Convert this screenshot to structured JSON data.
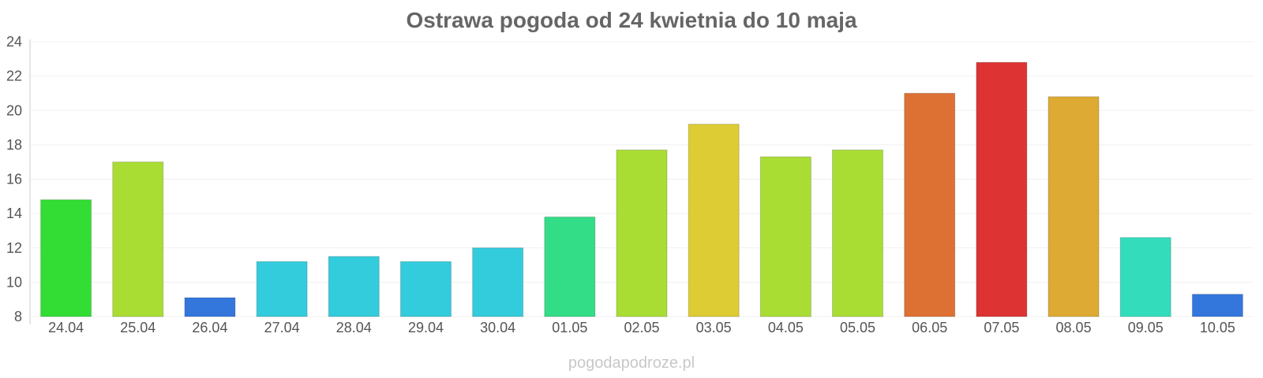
{
  "title": "Ostrawa pogoda od 24 kwietnia do 10 maja",
  "watermark": "pogodapodroze.pl",
  "chart_data": {
    "type": "bar",
    "title": "Ostrawa pogoda od 24 kwietnia do 10 maja",
    "xlabel": "",
    "ylabel": "",
    "ylim": [
      8,
      24
    ],
    "yticks": [
      8,
      10,
      12,
      14,
      16,
      18,
      20,
      22,
      24
    ],
    "grid": true,
    "categories": [
      "24.04",
      "25.04",
      "26.04",
      "27.04",
      "28.04",
      "29.04",
      "30.04",
      "01.05",
      "02.05",
      "03.05",
      "04.05",
      "05.05",
      "06.05",
      "07.05",
      "08.05",
      "09.05",
      "10.05"
    ],
    "values": [
      14.8,
      17.0,
      9.1,
      11.2,
      11.5,
      11.2,
      12.0,
      13.8,
      17.7,
      19.2,
      17.3,
      17.7,
      21.0,
      22.8,
      20.8,
      12.6,
      9.3
    ],
    "colors": [
      "#33dd33",
      "#aadd33",
      "#3377dd",
      "#33ccdd",
      "#33ccdd",
      "#33ccdd",
      "#33ccdd",
      "#33dd88",
      "#aadd33",
      "#ddcc33",
      "#aadd33",
      "#aadd33",
      "#dd7033",
      "#dd3333",
      "#ddaa33",
      "#33ddbb",
      "#3377dd"
    ]
  }
}
